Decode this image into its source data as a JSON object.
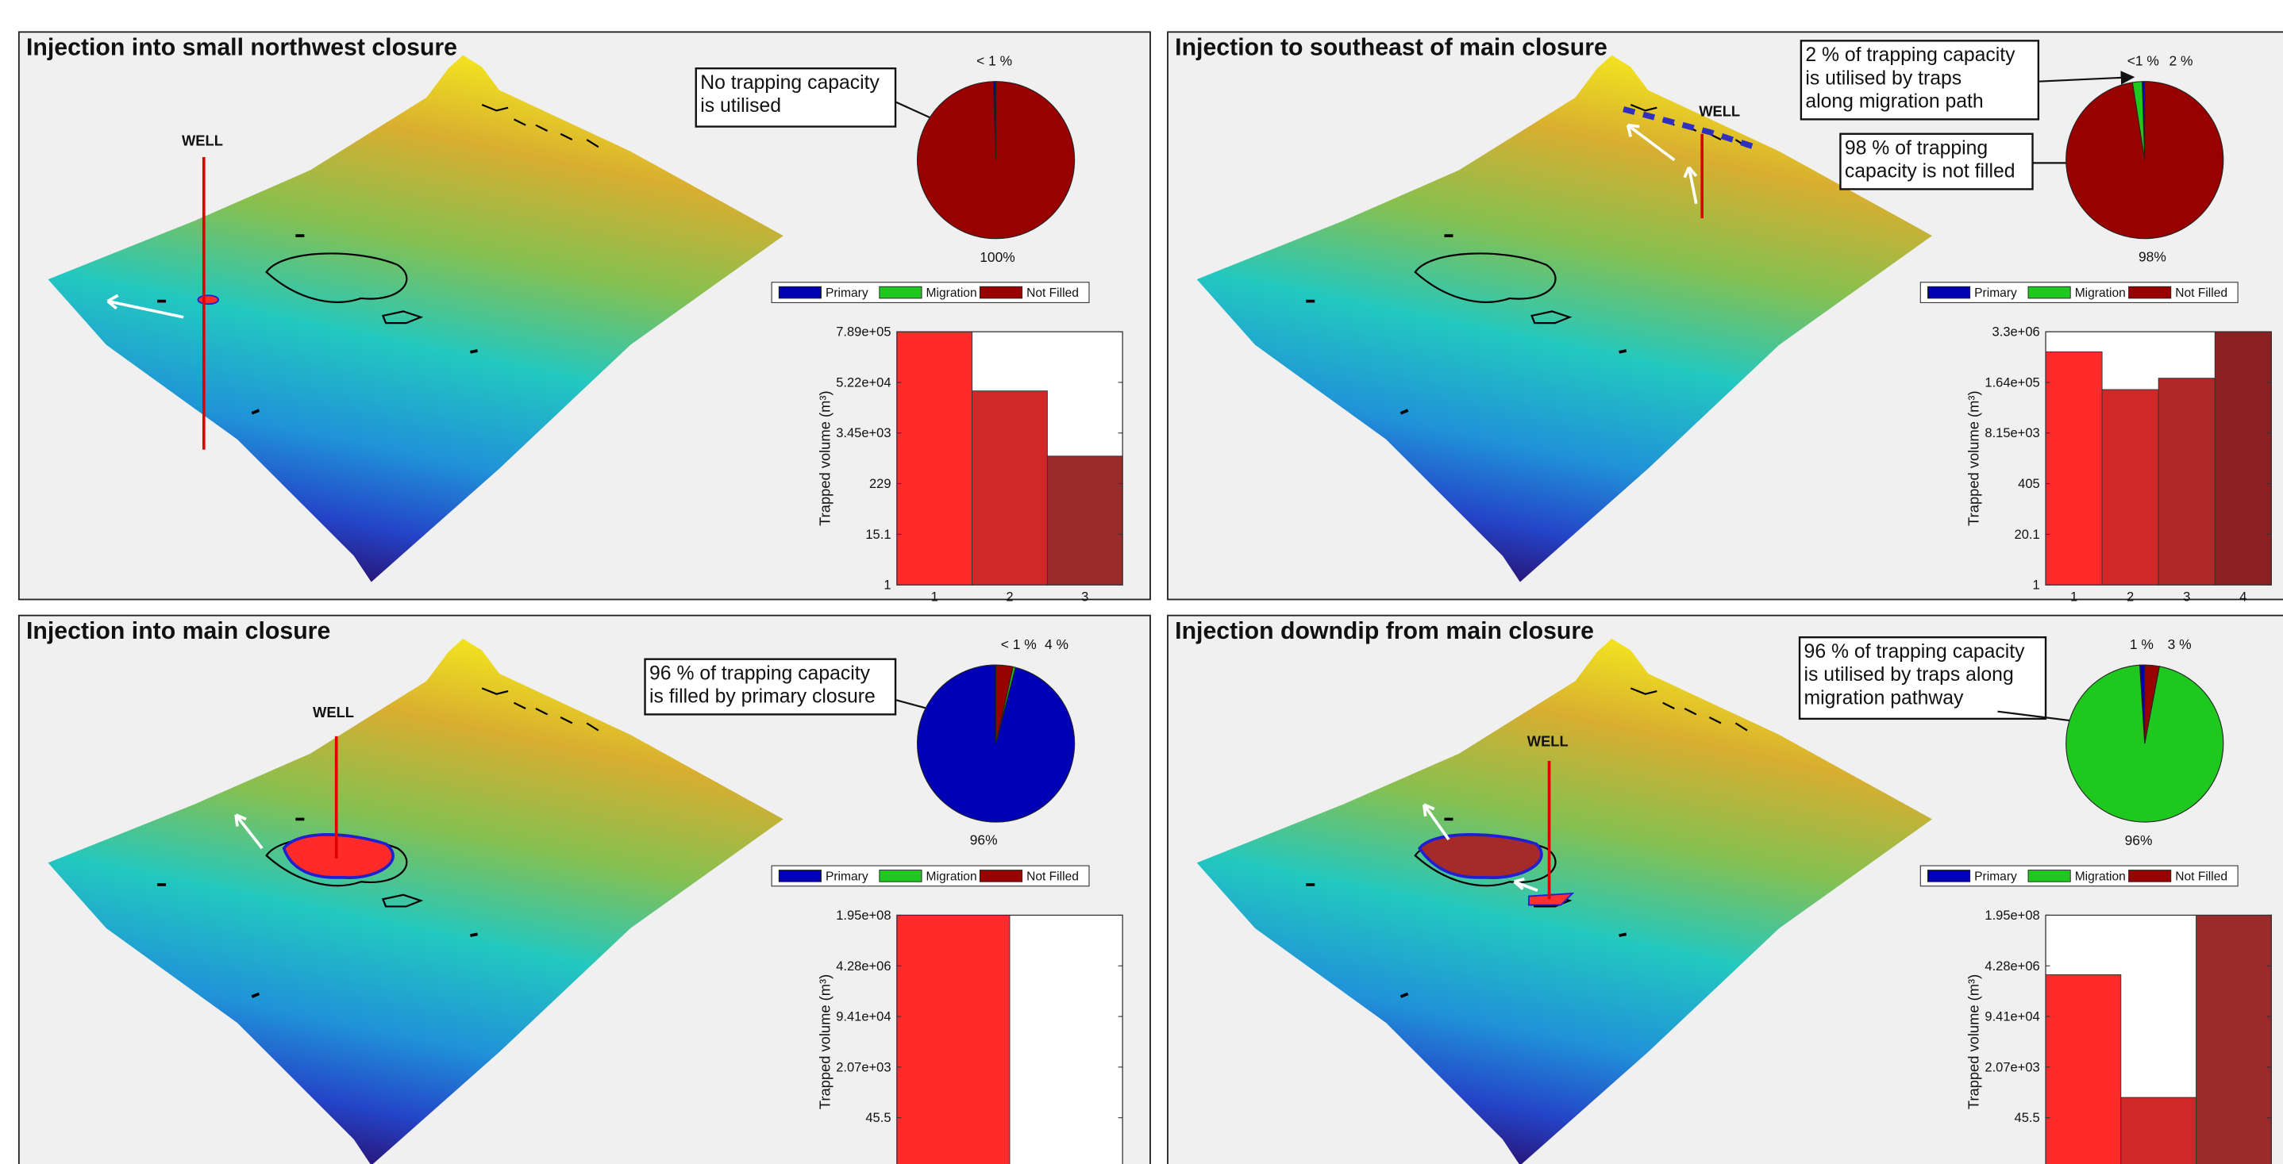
{
  "chart_data": [
    {
      "type": "pie",
      "title": "Injection into small northwest closure",
      "well_label": "WELL",
      "annotations": [
        {
          "lines": [
            "No trapping capacity",
            "is utilised"
          ]
        }
      ],
      "categories": [
        "Primary",
        "Migration",
        "Not Filled"
      ],
      "colors": [
        "#0000b4",
        "#1ec81e",
        "#990000"
      ],
      "values": [
        0.5,
        0,
        99.5
      ],
      "value_labels": [
        "< 1 %",
        null,
        "100%"
      ],
      "legend": true
    },
    {
      "type": "bar",
      "ylabel": "Trapped volume (m³)",
      "log_y": true,
      "categories": [
        "1",
        "2",
        "3"
      ],
      "colors": [
        "#ff2a2a",
        "#d02828",
        "#9b2a2a"
      ],
      "values": [
        789000,
        33000,
        1000
      ],
      "ylim": [
        1,
        789000
      ],
      "yticks": [
        1,
        15.1,
        229,
        {
          "value": 3450,
          "label": "3.45e+03"
        },
        {
          "value": 52200,
          "label": "5.22e+04"
        },
        {
          "value": 789000,
          "label": "7.89e+05"
        }
      ]
    },
    {
      "type": "pie",
      "title": "Injection to southeast of main closure",
      "well_label": "WELL",
      "annotations": [
        {
          "lines": [
            "2 % of trapping capacity",
            "is utilised by traps",
            "along migration path"
          ]
        },
        {
          "lines": [
            "98 % of trapping",
            "capacity is not filled"
          ]
        }
      ],
      "categories": [
        "Primary",
        "Migration",
        "Not Filled"
      ],
      "colors": [
        "#0000b4",
        "#1ec81e",
        "#990000"
      ],
      "values": [
        0.5,
        2,
        97.5
      ],
      "value_labels": [
        "<1 %",
        "2 %",
        "98%"
      ],
      "legend": true
    },
    {
      "type": "bar",
      "ylabel": "Trapped volume (m³)",
      "log_y": true,
      "categories": [
        "1",
        "2",
        "3",
        "4"
      ],
      "colors": [
        "#ff2a2a",
        "#d02828",
        "#b02828",
        "#8c2020"
      ],
      "values": [
        1000000,
        107000,
        210000,
        3300000
      ],
      "ylim": [
        1,
        3300000
      ],
      "yticks": [
        1,
        20.1,
        405,
        {
          "value": 8150,
          "label": "8.15e+03"
        },
        {
          "value": 164000,
          "label": "1.64e+05"
        },
        {
          "value": 3300000,
          "label": "3.3e+06"
        }
      ]
    },
    {
      "type": "pie",
      "title": "Injection into main closure",
      "well_label": "WELL",
      "annotations": [
        {
          "lines": [
            "96 % of trapping capacity",
            "is filled by primary closure"
          ]
        }
      ],
      "categories": [
        "Primary",
        "Migration",
        "Not Filled"
      ],
      "colors": [
        "#0000b4",
        "#1ec81e",
        "#990000"
      ],
      "values": [
        96,
        0.5,
        3.5
      ],
      "value_labels": [
        "96%",
        "< 1 %",
        "4 %"
      ],
      "legend": true
    },
    {
      "type": "bar",
      "ylabel": "Trapped volume (m³)",
      "log_y": true,
      "colors": [
        "#ff2a2a",
        "#d02828"
      ],
      "values": [
        195000000,
        1
      ],
      "ylim": [
        1,
        195000000
      ],
      "yticks": [
        45.5,
        {
          "value": 2070,
          "label": "2.07e+03"
        },
        {
          "value": 94100,
          "label": "9.41e+04"
        },
        {
          "value": 4280000,
          "label": "4.28e+06"
        },
        {
          "value": 195000000,
          "label": "1.95e+08"
        }
      ]
    },
    {
      "type": "pie",
      "title": "Injection downdip from main closure",
      "well_label": "WELL",
      "annotations": [
        {
          "lines": [
            "96 % of trapping capacity",
            "is utilised by traps along",
            "migration pathway"
          ]
        }
      ],
      "categories": [
        "Primary",
        "Migration",
        "Not Filled"
      ],
      "colors": [
        "#0000b4",
        "#1ec81e",
        "#990000"
      ],
      "values": [
        1,
        96,
        3
      ],
      "value_labels": [
        "1 %",
        "96%",
        "3 %"
      ],
      "legend": true
    },
    {
      "type": "bar",
      "ylabel": "Trapped volume (m³)",
      "log_y": true,
      "colors": [
        "#ff2a2a",
        "#d02828",
        "#9b2a2a"
      ],
      "values": [
        2200000,
        210,
        195000000
      ],
      "ylim": [
        1,
        195000000
      ],
      "yticks": [
        45.5,
        {
          "value": 2070,
          "label": "2.07e+03"
        },
        {
          "value": 94100,
          "label": "9.41e+04"
        },
        {
          "value": 4280000,
          "label": "4.28e+06"
        },
        {
          "value": 195000000,
          "label": "1.95e+08"
        }
      ]
    }
  ]
}
